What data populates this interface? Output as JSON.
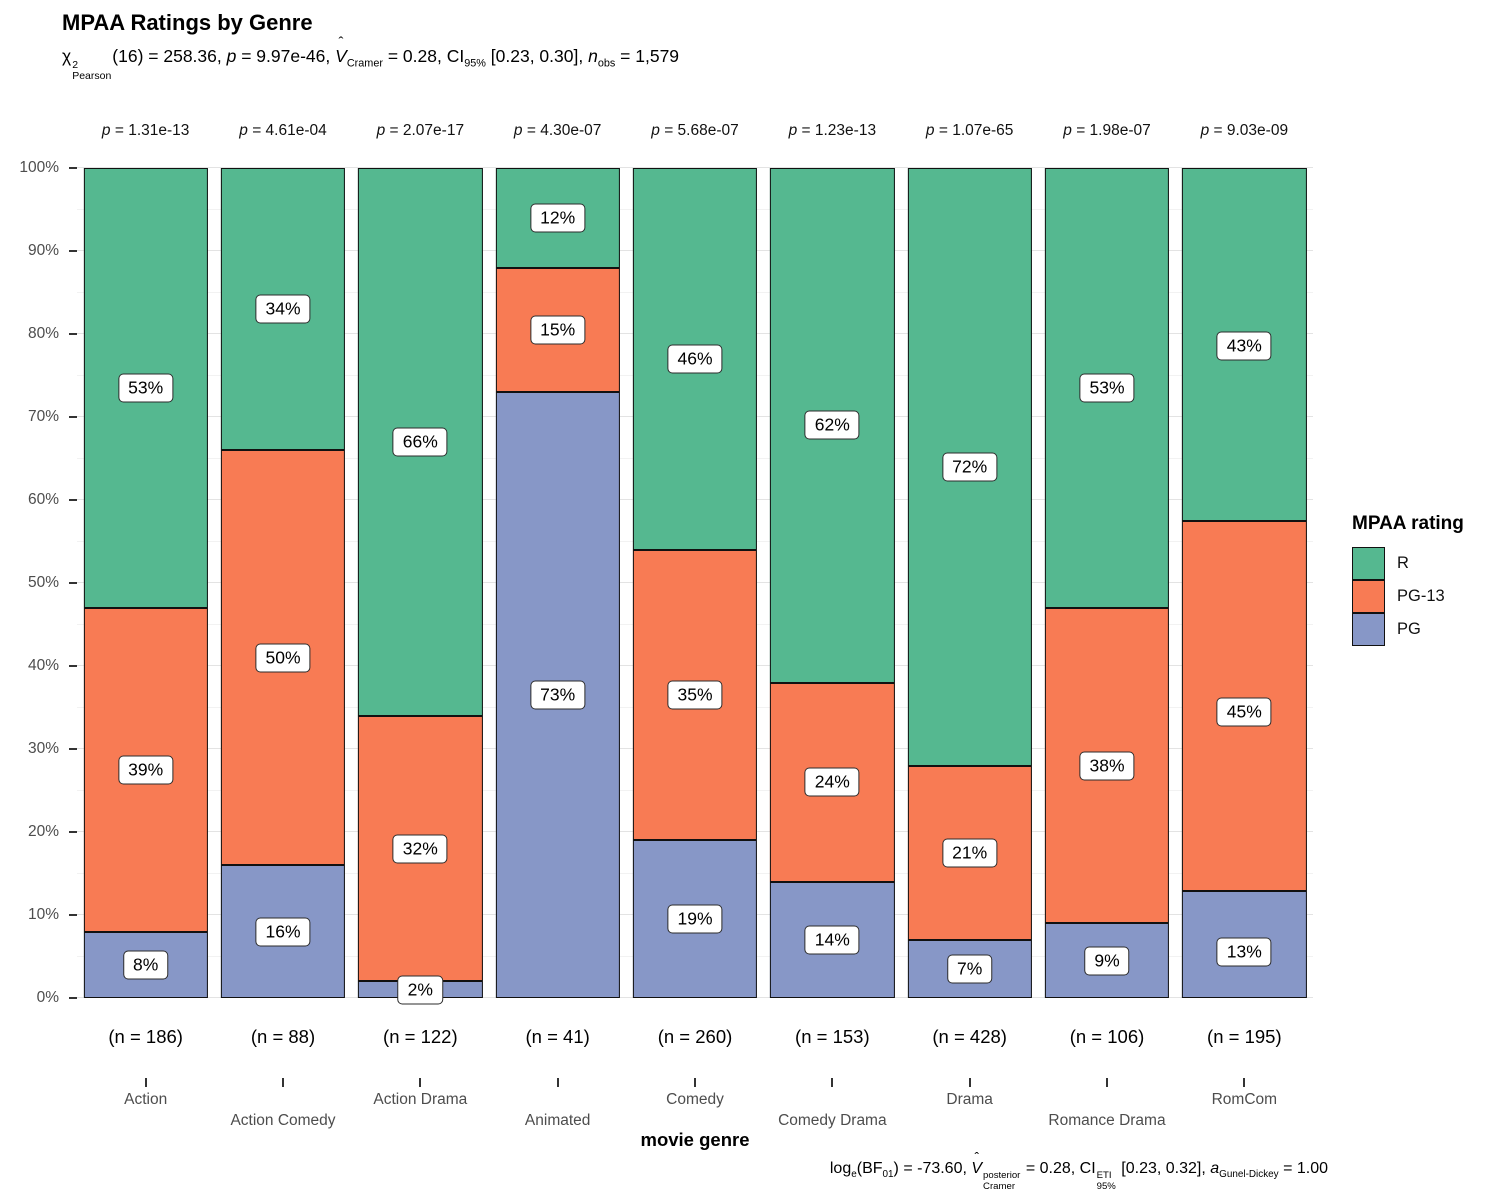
{
  "title": "MPAA Ratings by Genre",
  "subtitle_tokens": [
    {
      "text": "χ"
    },
    {
      "stack_over": "2",
      "stack_under": "Pearson"
    },
    {
      "text": "(16) = 258.36, "
    },
    {
      "text": "p",
      "italic": true
    },
    {
      "text": " = 9.97e-46, "
    },
    {
      "text": "V",
      "italic": true,
      "hat": true
    },
    {
      "sub": "Cramer"
    },
    {
      "text": " = 0.28, CI"
    },
    {
      "sub": "95%"
    },
    {
      "text": " [0.23, 0.30], "
    },
    {
      "text": "n",
      "italic": true
    },
    {
      "sub": "obs"
    },
    {
      "text": " = 1,579"
    }
  ],
  "caption_tokens": [
    {
      "text": "log"
    },
    {
      "sub": "e"
    },
    {
      "text": "(BF"
    },
    {
      "sub": "01"
    },
    {
      "text": ") = -73.60, "
    },
    {
      "text": "V",
      "italic": true,
      "hat": true
    },
    {
      "stack_over": "posterior",
      "stack_under": "Cramer"
    },
    {
      "text": " = 0.28, CI"
    },
    {
      "stack_over": "ETI",
      "stack_under": "95%"
    },
    {
      "text": " [0.23, 0.32], "
    },
    {
      "text": "a",
      "italic": true
    },
    {
      "sub": "Gunel-Dickey"
    },
    {
      "text": " = 1.00"
    }
  ],
  "legend": {
    "title": "MPAA rating",
    "items": [
      {
        "label": "R",
        "color": "#55B890"
      },
      {
        "label": "PG-13",
        "color": "#F87B54"
      },
      {
        "label": "PG",
        "color": "#8797C7"
      }
    ]
  },
  "axes": {
    "x_title": "movie genre",
    "y_tick_labels": [
      "0%",
      "10%",
      "20%",
      "30%",
      "40%",
      "50%",
      "60%",
      "70%",
      "80%",
      "90%",
      "100%"
    ],
    "p_prefix": "p",
    "p_separator": " = "
  },
  "chart_data": {
    "type": "bar",
    "subtype": "stacked-percent",
    "title": "MPAA Ratings by Genre",
    "xlabel": "movie genre",
    "ylabel": "",
    "ylim": [
      0,
      100
    ],
    "grid": true,
    "legend_position": "right",
    "legend_title": "MPAA rating",
    "categories": [
      "Action",
      "Action Comedy",
      "Action Drama",
      "Animated",
      "Comedy",
      "Comedy Drama",
      "Drama",
      "Romance Drama",
      "RomCom"
    ],
    "n_obs": [
      186,
      88,
      122,
      41,
      260,
      153,
      428,
      106,
      195
    ],
    "n_labels": [
      "(n = 186)",
      "(n = 88)",
      "(n = 122)",
      "(n = 41)",
      "(n = 260)",
      "(n = 153)",
      "(n = 428)",
      "(n = 106)",
      "(n = 195)"
    ],
    "p_values": [
      "1.31e-13",
      "4.61e-04",
      "2.07e-17",
      "4.30e-07",
      "5.68e-07",
      "1.23e-13",
      "1.07e-65",
      "1.98e-07",
      "9.03e-09"
    ],
    "series": [
      {
        "name": "R",
        "color": "#55B890",
        "values": [
          53,
          34,
          66,
          12,
          46,
          62,
          72,
          53,
          43
        ]
      },
      {
        "name": "PG-13",
        "color": "#F87B54",
        "values": [
          39,
          50,
          32,
          15,
          35,
          24,
          21,
          38,
          45
        ]
      },
      {
        "name": "PG",
        "color": "#8797C7",
        "values": [
          8,
          16,
          2,
          73,
          19,
          14,
          7,
          9,
          13
        ]
      }
    ],
    "overall_stats": {
      "chi_sq_df": 16,
      "chi_sq": 258.36,
      "p": "9.97e-46",
      "cramers_v": 0.28,
      "ci_95": [
        0.23,
        0.3
      ],
      "n_obs_total": 1579,
      "log_e_BF01": -73.6,
      "cramers_v_posterior": 0.28,
      "ci_eti_95": [
        0.23,
        0.32
      ],
      "a_gunel_dickey": 1.0
    }
  }
}
